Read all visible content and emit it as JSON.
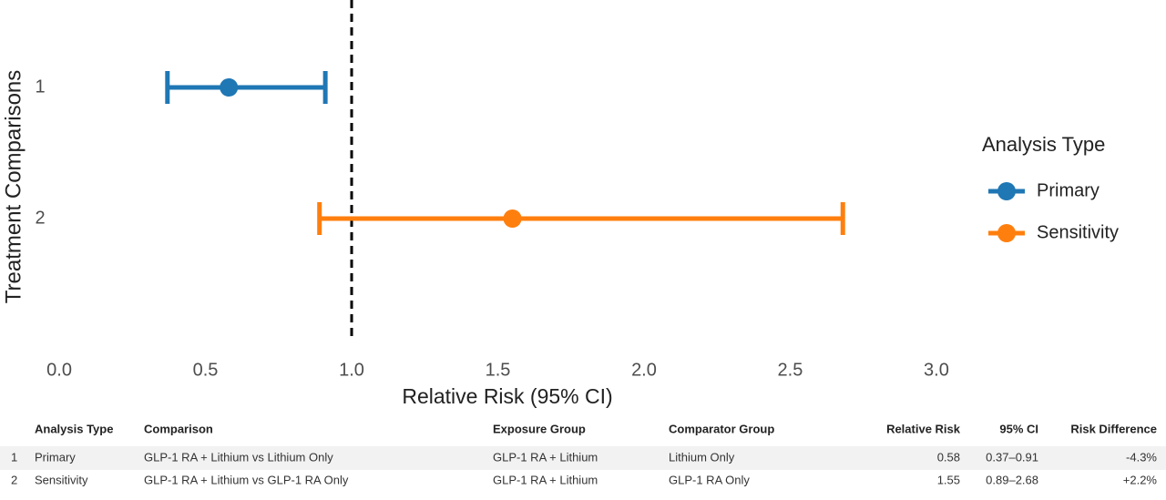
{
  "chart_data": {
    "type": "forest",
    "ylabel": "Treatment Comparisons",
    "xlabel": "Relative Risk (95% CI)",
    "categories": [
      "1",
      "2"
    ],
    "series": [
      {
        "name": "Primary",
        "color": "#1f77b4",
        "values": [
          0.58,
          null
        ],
        "lower": [
          0.37,
          null
        ],
        "upper": [
          0.91,
          null
        ]
      },
      {
        "name": "Sensitivity",
        "color": "#ff7f0e",
        "values": [
          null,
          1.55
        ],
        "lower": [
          null,
          0.89
        ],
        "upper": [
          null,
          2.68
        ]
      }
    ],
    "reference_line": 1,
    "xlim": [
      -0.05,
      3.05
    ],
    "xticks": [
      {
        "value": 0,
        "label": "0.0"
      },
      0.5,
      {
        "value": 1,
        "label": "1.0"
      },
      1.5,
      {
        "value": 2,
        "label": "2.0"
      },
      2.5,
      {
        "value": 3,
        "label": "3.0"
      }
    ],
    "legend": {
      "title": "Analysis Type",
      "position": "right"
    }
  },
  "table": {
    "columns": [
      "Analysis Type",
      "Comparison",
      "Exposure Group",
      "Comparator Group",
      "Relative Risk",
      "95% CI",
      "Risk Difference"
    ],
    "rows": [
      {
        "index": "1",
        "cells": [
          "Primary",
          "GLP-1 RA + Lithium vs Lithium Only",
          "GLP-1 RA + Lithium",
          "Lithium Only",
          "0.58",
          "0.37–0.91",
          "-4.3%"
        ]
      },
      {
        "index": "2",
        "cells": [
          "Sensitivity",
          "GLP-1 RA + Lithium vs GLP-1 RA Only",
          "GLP-1 RA + Lithium",
          "GLP-1 RA Only",
          "1.55",
          "0.89–2.68",
          "+2.2%"
        ]
      }
    ]
  }
}
